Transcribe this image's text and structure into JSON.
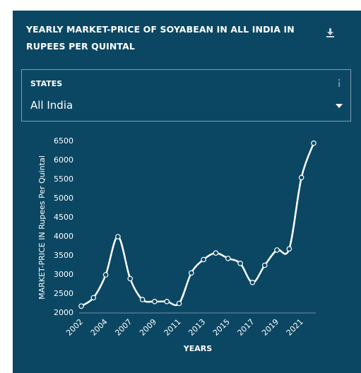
{
  "chart_data": {
    "type": "line",
    "title": "YEARLY MARKET-PRICE OF SOYABEAN IN ALL INDIA IN RUPEES PER QUINTAL",
    "filter": {
      "label": "STATES",
      "value": "All India"
    },
    "ylabel": "MARKET-PRICE IN  Rupees Per Quintal",
    "xlabel": "YEARS",
    "categories": [
      "2002",
      null,
      "2004",
      null,
      "2007",
      null,
      "2009",
      null,
      "2011",
      null,
      "2013",
      null,
      "2015",
      null,
      "2017",
      null,
      "2019",
      null,
      "2021",
      null
    ],
    "series": [
      {
        "name": "Soyabean",
        "color": "#ffffff",
        "values": [
          2180,
          2400,
          3000,
          4000,
          2900,
          2350,
          2300,
          2300,
          2250,
          3050,
          3400,
          3570,
          3430,
          3300,
          2800,
          3250,
          3650,
          3680,
          5550,
          6450
        ]
      }
    ],
    "ylim": [
      2000,
      6500
    ],
    "yticks": [
      2000,
      2500,
      3000,
      3500,
      4000,
      4500,
      5000,
      5500,
      6000,
      6500
    ]
  }
}
